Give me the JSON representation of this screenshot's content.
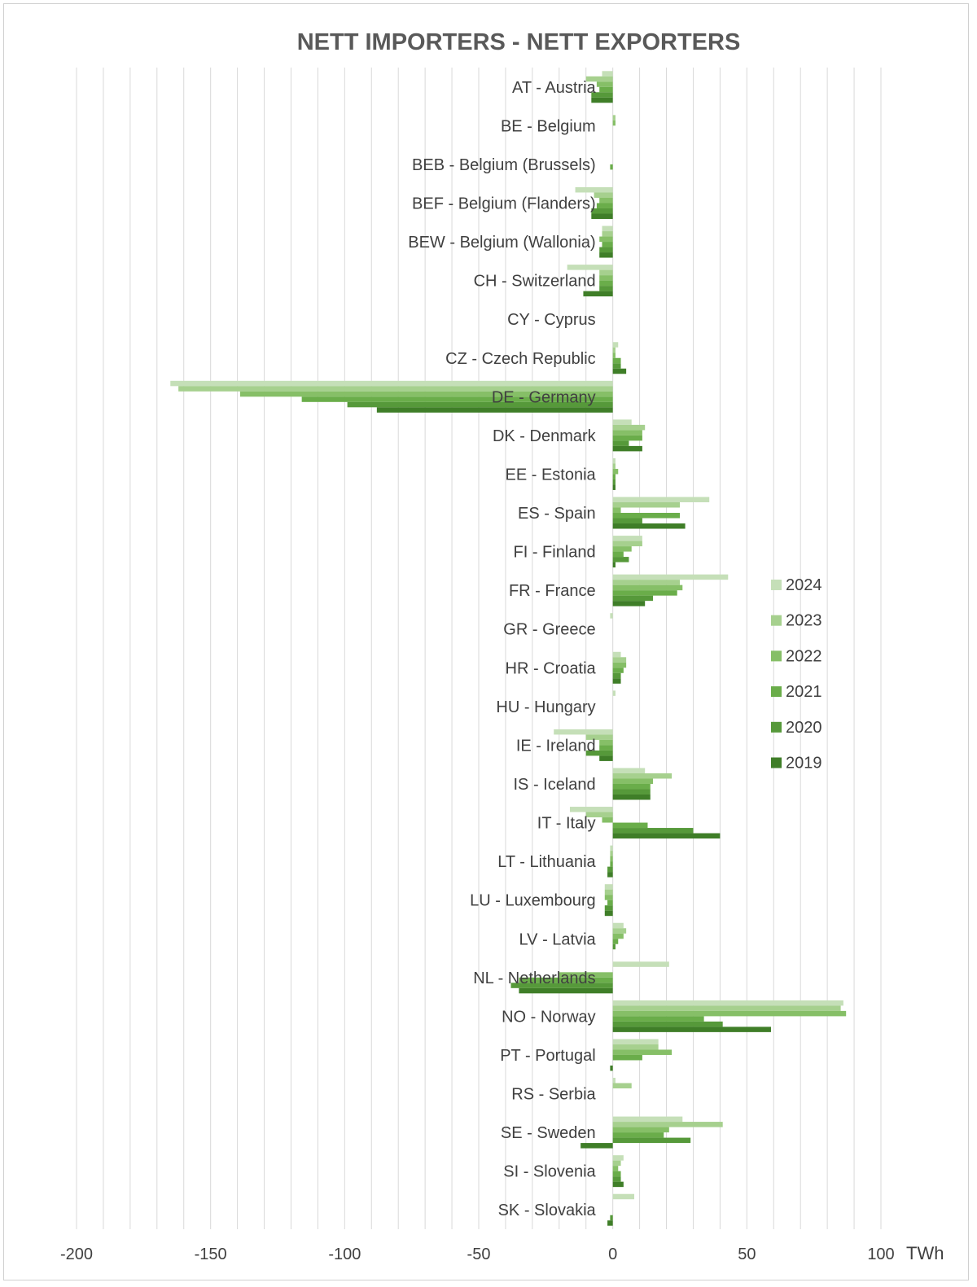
{
  "chart_data": {
    "type": "bar",
    "orientation": "horizontal",
    "title": "NETT IMPORTERS - NETT EXPORTERS",
    "xlabel": "TWh",
    "ylabel": "",
    "xlim": [
      -200,
      100
    ],
    "xticks": [
      -200,
      -150,
      -100,
      -50,
      0,
      50,
      100
    ],
    "grid": true,
    "legend_position": "right",
    "categories": [
      "AT - Austria",
      "BE - Belgium",
      "BEB - Belgium (Brussels)",
      "BEF - Belgium (Flanders)",
      "BEW - Belgium (Wallonia)",
      "CH - Switzerland",
      "CY - Cyprus",
      "CZ - Czech Republic",
      "DE - Germany",
      "DK - Denmark",
      "EE - Estonia",
      "ES - Spain",
      "FI - Finland",
      "FR - France",
      "GR - Greece",
      "HR - Croatia",
      "HU - Hungary",
      "IE - Ireland",
      "IS - Iceland",
      "IT - Italy",
      "LT - Lithuania",
      "LU - Luxembourg",
      "LV - Latvia",
      "NL - Netherlands",
      "NO - Norway",
      "PT - Portugal",
      "RS - Serbia",
      "SE - Sweden",
      "SI - Slovenia",
      "SK - Slovakia"
    ],
    "series": [
      {
        "name": "2024",
        "color": "#c5dfb8",
        "values": [
          -4,
          0,
          0,
          -14,
          -4,
          -17,
          0,
          2,
          -165,
          7,
          1,
          36,
          11,
          43,
          -1,
          3,
          1,
          -22,
          12,
          -16,
          -1,
          -3,
          4,
          21,
          86,
          17,
          1,
          26,
          4,
          8
        ]
      },
      {
        "name": "2023",
        "color": "#a6d08e",
        "values": [
          -10,
          1,
          0,
          -7,
          -4,
          -5,
          0,
          1,
          -162,
          12,
          1,
          25,
          11,
          25,
          0,
          5,
          0,
          -10,
          22,
          -10,
          -1,
          -3,
          5,
          0,
          85,
          17,
          7,
          41,
          3,
          0
        ]
      },
      {
        "name": "2022",
        "color": "#86bf67",
        "values": [
          -6,
          1,
          0,
          -5,
          -5,
          -5,
          0,
          1,
          -139,
          11,
          2,
          3,
          7,
          26,
          0,
          5,
          0,
          -5,
          15,
          -4,
          -1,
          -3,
          4,
          -20,
          87,
          22,
          0,
          21,
          2,
          0
        ]
      },
      {
        "name": "2021",
        "color": "#6aad4a",
        "values": [
          -5,
          0,
          -1,
          -6,
          -4,
          -5,
          0,
          3,
          -116,
          11,
          1,
          25,
          4,
          24,
          0,
          4,
          0,
          -5,
          14,
          13,
          -1,
          -2,
          2,
          -35,
          34,
          11,
          0,
          19,
          3,
          0
        ]
      },
      {
        "name": "2020",
        "color": "#56993a",
        "values": [
          -8,
          0,
          0,
          -8,
          -5,
          -5,
          0,
          3,
          -99,
          6,
          1,
          11,
          6,
          15,
          0,
          3,
          0,
          -10,
          14,
          30,
          -2,
          -3,
          1,
          -38,
          41,
          0,
          0,
          29,
          3,
          -1
        ]
      },
      {
        "name": "2019",
        "color": "#3f7e28",
        "values": [
          -8,
          0,
          0,
          -8,
          -5,
          -11,
          0,
          5,
          -88,
          11,
          1,
          27,
          1,
          12,
          0,
          3,
          0,
          -5,
          14,
          40,
          -2,
          -3,
          0,
          -35,
          59,
          -1,
          0,
          -12,
          4,
          -2
        ]
      }
    ]
  }
}
